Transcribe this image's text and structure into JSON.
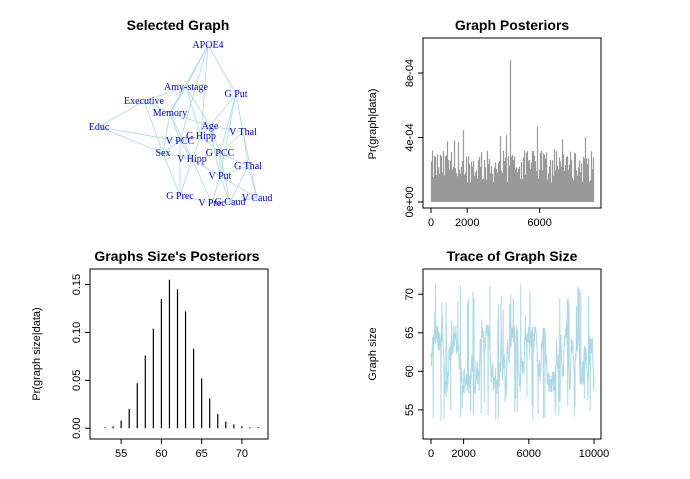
{
  "colors": {
    "edge": "#a8d8ea",
    "node_text": "#0000cc",
    "posterior_bars": "#999999",
    "trace": "#add8e6",
    "axis": "#000000"
  },
  "chart_data": [
    {
      "id": "selected_graph",
      "type": "network",
      "title": "Selected Graph",
      "nodes": [
        "APOE4",
        "Amy-stage",
        "G Put",
        "Executive",
        "Memory",
        "Age",
        "Educ",
        "G Hipp",
        "V Thal",
        "V PCC",
        "G PCC",
        "Sex",
        "V Hipp",
        "G Thal",
        "V Put",
        "G Prec",
        "V Caud",
        "V Prec",
        "G Caud"
      ],
      "edges": [
        [
          "APOE4",
          "Amy-stage"
        ],
        [
          "APOE4",
          "Memory"
        ],
        [
          "APOE4",
          "G Hipp"
        ],
        [
          "APOE4",
          "V PCC"
        ],
        [
          "APOE4",
          "G Put"
        ],
        [
          "Amy-stage",
          "Memory"
        ],
        [
          "Amy-stage",
          "Executive"
        ],
        [
          "Amy-stage",
          "Age"
        ],
        [
          "Amy-stage",
          "G Hipp"
        ],
        [
          "Executive",
          "Educ"
        ],
        [
          "Executive",
          "Memory"
        ],
        [
          "Executive",
          "Sex"
        ],
        [
          "Memory",
          "Age"
        ],
        [
          "Memory",
          "V PCC"
        ],
        [
          "Memory",
          "Sex"
        ],
        [
          "Memory",
          "V Hipp"
        ],
        [
          "Educ",
          "Sex"
        ],
        [
          "Educ",
          "V PCC"
        ],
        [
          "G Put",
          "V Thal"
        ],
        [
          "G Put",
          "Age"
        ],
        [
          "G Put",
          "G PCC"
        ],
        [
          "G Put",
          "V Put"
        ],
        [
          "Age",
          "V Thal"
        ],
        [
          "Age",
          "G Hipp"
        ],
        [
          "Age",
          "G PCC"
        ],
        [
          "Age",
          "V Put"
        ],
        [
          "G Hipp",
          "V PCC"
        ],
        [
          "G Hipp",
          "V Hipp"
        ],
        [
          "G Hipp",
          "G PCC"
        ],
        [
          "V Thal",
          "G Thal"
        ],
        [
          "V Thal",
          "G PCC"
        ],
        [
          "V Thal",
          "V Caud"
        ],
        [
          "V PCC",
          "Sex"
        ],
        [
          "V PCC",
          "V Hipp"
        ],
        [
          "V PCC",
          "G Prec"
        ],
        [
          "Sex",
          "V Hipp"
        ],
        [
          "Sex",
          "G Prec"
        ],
        [
          "V Hipp",
          "V Put"
        ],
        [
          "V Hipp",
          "G Prec"
        ],
        [
          "V Hipp",
          "V Prec"
        ],
        [
          "G PCC",
          "G Thal"
        ],
        [
          "G PCC",
          "V Put"
        ],
        [
          "G PCC",
          "G Caud"
        ],
        [
          "G Thal",
          "V Put"
        ],
        [
          "G Thal",
          "V Caud"
        ],
        [
          "G Thal",
          "G Caud"
        ],
        [
          "V Put",
          "V Prec"
        ],
        [
          "V Put",
          "G Caud"
        ],
        [
          "V Put",
          "V Caud"
        ],
        [
          "G Prec",
          "V Prec"
        ],
        [
          "V Prec",
          "G Caud"
        ],
        [
          "G Caud",
          "V Caud"
        ]
      ]
    },
    {
      "id": "graph_posteriors",
      "type": "bar",
      "title": "Graph Posteriors",
      "ylabel": "Pr(graph|data)",
      "xlim": [
        0,
        9000
      ],
      "ylim": [
        0,
        0.00098
      ],
      "xticks": [
        0,
        2000,
        6000
      ],
      "xtick_labels": [
        "0",
        "2000",
        "6000"
      ],
      "yticks": [
        0,
        0.0004,
        0.0008
      ],
      "ytick_labels": [
        "0e+00",
        "4e-04",
        "8e-04"
      ],
      "n_bars": 9000,
      "typical_range": [
        0.00012,
        0.00032
      ],
      "peak": {
        "x": 4400,
        "y": 0.00088
      }
    },
    {
      "id": "graph_size_posteriors",
      "type": "bar",
      "title": "Graphs Size's Posteriors",
      "ylabel": "Pr(graph size|data)",
      "xticks": [
        55,
        60,
        65,
        70
      ],
      "yticks": [
        0.0,
        0.05,
        0.1,
        0.15
      ],
      "ytick_labels": [
        "0.00",
        "0.05",
        "0.10",
        "0.15"
      ],
      "xlim": [
        52,
        72
      ],
      "ylim": [
        -0.005,
        0.16
      ],
      "x": [
        53,
        54,
        55,
        56,
        57,
        58,
        59,
        60,
        61,
        62,
        63,
        64,
        65,
        66,
        67,
        68,
        69,
        70,
        71,
        72
      ],
      "values": [
        0.001,
        0.002,
        0.008,
        0.02,
        0.047,
        0.076,
        0.104,
        0.135,
        0.155,
        0.145,
        0.122,
        0.083,
        0.052,
        0.031,
        0.015,
        0.007,
        0.004,
        0.002,
        0.001,
        0.001
      ]
    },
    {
      "id": "trace_graph_size",
      "type": "line",
      "title": "Trace of Graph Size",
      "ylabel": "Graph size",
      "xlim": [
        0,
        10000
      ],
      "ylim": [
        52,
        72.5
      ],
      "xticks": [
        0,
        2000,
        6000,
        10000
      ],
      "yticks": [
        55,
        60,
        65,
        70
      ],
      "n_iterations": 10000,
      "typical_range": [
        57,
        66
      ],
      "extremes": {
        "min": 53,
        "max": 72
      }
    }
  ]
}
